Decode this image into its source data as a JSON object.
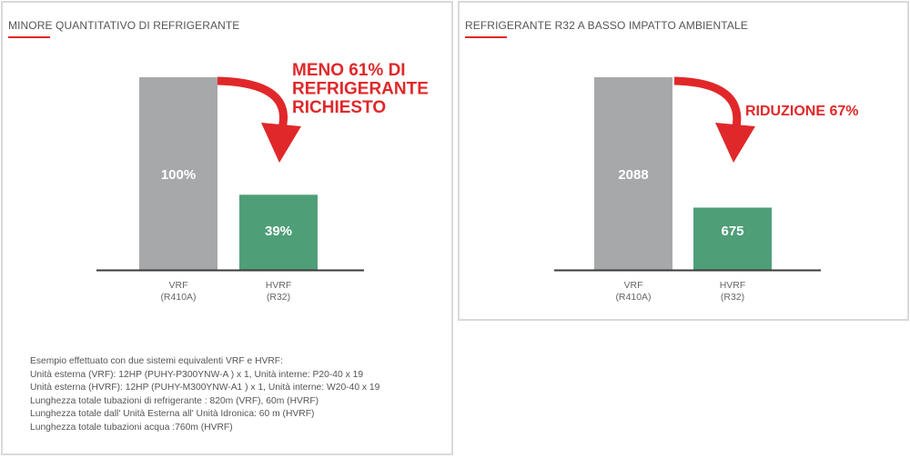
{
  "chart_data": [
    {
      "type": "bar",
      "title": "MINORE QUANTITATIVO DI REFRIGERANTE",
      "categories": [
        {
          "name": "VRF",
          "sub": "(R410A)"
        },
        {
          "name": "HVRF",
          "sub": "(R32)"
        }
      ],
      "values": [
        100,
        39
      ],
      "value_labels": [
        "100%",
        "39%"
      ],
      "colors": [
        "#a7a8aa",
        "#4e9e78"
      ],
      "ylim": [
        0,
        100
      ],
      "annotation": [
        "MENO 61% DI",
        "REFRIGERANTE",
        "RICHIESTO"
      ],
      "annotation_color": "#e0282a"
    },
    {
      "type": "bar",
      "title": "REFRIGERANTE R32 A BASSO IMPATTO AMBIENTALE",
      "categories": [
        {
          "name": "VRF",
          "sub": "(R410A)"
        },
        {
          "name": "HVRF",
          "sub": "(R32)"
        }
      ],
      "values": [
        2088,
        675
      ],
      "value_labels": [
        "2088",
        "675"
      ],
      "colors": [
        "#a7a8aa",
        "#4e9e78"
      ],
      "ylim": [
        0,
        2088
      ],
      "annotation": [
        "RIDUZIONE 67%"
      ],
      "annotation_color": "#e0282a"
    }
  ],
  "footnote": {
    "lines": [
      "Esempio effettuato con due sistemi equivalenti VRF e HVRF:",
      "Unità esterna  (VRF): 12HP (PUHY-P300YNW-A ) x 1, Unità interne: P20-40 x 19",
      "Unità esterna  (HVRF): 12HP (PUHY-M300YNW-A1 ) x 1, Unità interne: W20-40 x 19",
      "Lunghezza totale tubazioni di  refrigerante : 820m (VRF), 60m (HVRF)",
      "Lunghezza totale dall' Unità Esterna all' Unità Idronica: 60 m (HVRF)",
      "Lunghezza totale tubazioni acqua :760m (HVRF)"
    ]
  }
}
